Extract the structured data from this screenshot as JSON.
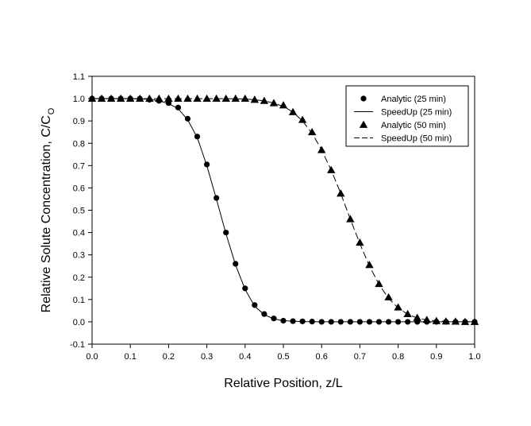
{
  "chart_data": {
    "type": "scatter",
    "title": "",
    "xlabel": "Relative Position, z/L",
    "ylabel_main": "Relative Solute Concentration, C/C",
    "ylabel_sub": "O",
    "xlim": [
      0.0,
      1.0
    ],
    "ylim": [
      -0.1,
      1.1
    ],
    "x_ticks": [
      0.0,
      0.1,
      0.2,
      0.3,
      0.4,
      0.5,
      0.6,
      0.7,
      0.8,
      0.9,
      1.0
    ],
    "x_tick_labels": [
      "0.0",
      "0.1",
      "0.2",
      "0.3",
      "0.4",
      "0.5",
      "0.6",
      "0.7",
      "0.8",
      "0.9",
      "1.0"
    ],
    "y_ticks": [
      -0.1,
      0.0,
      0.1,
      0.2,
      0.3,
      0.4,
      0.5,
      0.6,
      0.7,
      0.8,
      0.9,
      1.0,
      1.1
    ],
    "y_tick_labels": [
      "-0.1",
      "0.0",
      "0.1",
      "0.2",
      "0.3",
      "0.4",
      "0.5",
      "0.6",
      "0.7",
      "0.8",
      "0.9",
      "1.0",
      "1.1"
    ],
    "grid": false,
    "legend_position": "top-right",
    "series": [
      {
        "name": "Analytic (25 min)",
        "kind": "markers",
        "marker": "circle",
        "x": [
          0.0,
          0.025,
          0.05,
          0.075,
          0.1,
          0.125,
          0.15,
          0.175,
          0.2,
          0.225,
          0.25,
          0.275,
          0.3,
          0.325,
          0.35,
          0.375,
          0.4,
          0.425,
          0.45,
          0.475,
          0.5,
          0.525,
          0.55,
          0.575,
          0.6,
          0.625,
          0.65,
          0.675,
          0.7,
          0.725,
          0.75,
          0.775,
          0.8,
          0.825,
          0.85,
          0.875,
          0.9,
          0.925,
          0.95,
          0.975,
          1.0
        ],
        "y": [
          1.0,
          1.0,
          1.0,
          1.0,
          1.0,
          1.0,
          0.995,
          0.99,
          0.98,
          0.96,
          0.91,
          0.83,
          0.705,
          0.555,
          0.4,
          0.26,
          0.15,
          0.075,
          0.035,
          0.015,
          0.005,
          0.003,
          0.002,
          0.001,
          0.0,
          0.0,
          0.0,
          0.0,
          0.0,
          0.0,
          0.0,
          0.0,
          0.0,
          0.0,
          0.0,
          0.0,
          0.0,
          0.0,
          0.0,
          0.0,
          0.0
        ]
      },
      {
        "name": "SpeedUp (25 min)",
        "kind": "line",
        "dash": "solid",
        "x": [
          0.0,
          0.05,
          0.1,
          0.15,
          0.175,
          0.2,
          0.225,
          0.25,
          0.275,
          0.3,
          0.325,
          0.35,
          0.375,
          0.4,
          0.425,
          0.45,
          0.475,
          0.5,
          0.55,
          0.6,
          0.7,
          0.8,
          0.9,
          1.0
        ],
        "y": [
          1.0,
          1.0,
          1.0,
          0.997,
          0.99,
          0.978,
          0.955,
          0.905,
          0.825,
          0.7,
          0.55,
          0.395,
          0.255,
          0.145,
          0.07,
          0.032,
          0.013,
          0.005,
          0.001,
          0.0,
          0.0,
          0.0,
          0.0,
          0.0
        ]
      },
      {
        "name": "Analytic (50 min)",
        "kind": "markers",
        "marker": "triangle",
        "x": [
          0.0,
          0.025,
          0.05,
          0.075,
          0.1,
          0.125,
          0.15,
          0.175,
          0.2,
          0.225,
          0.25,
          0.275,
          0.3,
          0.325,
          0.35,
          0.375,
          0.4,
          0.425,
          0.45,
          0.475,
          0.5,
          0.525,
          0.55,
          0.575,
          0.6,
          0.625,
          0.65,
          0.675,
          0.7,
          0.725,
          0.75,
          0.775,
          0.8,
          0.825,
          0.85,
          0.875,
          0.9,
          0.925,
          0.95,
          0.975,
          1.0
        ],
        "y": [
          1.0,
          1.0,
          1.0,
          1.0,
          1.0,
          1.0,
          1.0,
          1.0,
          1.0,
          1.0,
          1.0,
          1.0,
          1.0,
          1.0,
          1.0,
          1.0,
          1.0,
          0.995,
          0.99,
          0.98,
          0.97,
          0.94,
          0.905,
          0.85,
          0.77,
          0.68,
          0.575,
          0.46,
          0.355,
          0.255,
          0.17,
          0.11,
          0.065,
          0.035,
          0.018,
          0.009,
          0.004,
          0.002,
          0.001,
          0.0,
          0.0
        ]
      },
      {
        "name": "SpeedUp (50 min)",
        "kind": "line",
        "dash": "dashed",
        "x": [
          0.0,
          0.1,
          0.2,
          0.3,
          0.35,
          0.4,
          0.425,
          0.45,
          0.475,
          0.5,
          0.525,
          0.55,
          0.575,
          0.6,
          0.625,
          0.65,
          0.675,
          0.7,
          0.725,
          0.75,
          0.775,
          0.8,
          0.825,
          0.85,
          0.875,
          0.9,
          0.95,
          1.0
        ],
        "y": [
          1.0,
          1.0,
          1.0,
          1.0,
          1.0,
          0.998,
          0.995,
          0.99,
          0.98,
          0.965,
          0.94,
          0.9,
          0.845,
          0.77,
          0.68,
          0.575,
          0.46,
          0.35,
          0.25,
          0.168,
          0.105,
          0.062,
          0.034,
          0.017,
          0.008,
          0.004,
          0.001,
          0.0
        ]
      }
    ]
  }
}
